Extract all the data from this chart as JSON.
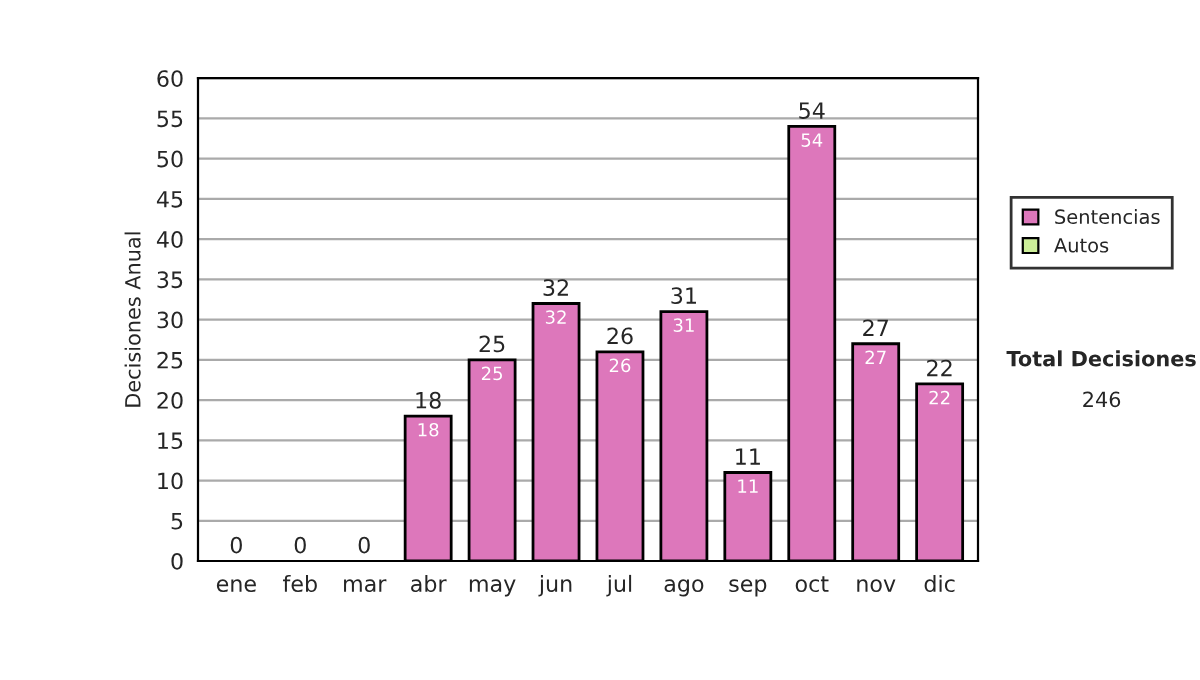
{
  "chart_data": {
    "type": "bar",
    "stacked": true,
    "ylabel": "Decisiones Anual",
    "categories": [
      "ene",
      "feb",
      "mar",
      "abr",
      "may",
      "jun",
      "jul",
      "ago",
      "sep",
      "oct",
      "nov",
      "dic"
    ],
    "series": [
      {
        "name": "Sentencias",
        "color": "#dd77bb",
        "values": [
          0,
          0,
          0,
          18,
          25,
          32,
          26,
          31,
          11,
          54,
          27,
          22
        ],
        "value_labels": [
          null,
          null,
          null,
          "18",
          "25",
          "32",
          "26",
          "31",
          "11",
          "54",
          "27",
          "22"
        ]
      },
      {
        "name": "Autos",
        "color": "#ccee99",
        "values": [
          0,
          0,
          0,
          0,
          0,
          0,
          0,
          0,
          0,
          0,
          0,
          0
        ]
      }
    ],
    "totals": [
      "0",
      "0",
      "0",
      "18",
      "25",
      "32",
      "26",
      "31",
      "11",
      "54",
      "27",
      "22"
    ],
    "ylim": [
      0,
      60
    ],
    "yticks": [
      0,
      5,
      10,
      15,
      20,
      25,
      30,
      35,
      40,
      45,
      50,
      55,
      60
    ],
    "grid": "y",
    "legend": "right",
    "annotations": [
      "Total Decisiones",
      "246"
    ]
  }
}
